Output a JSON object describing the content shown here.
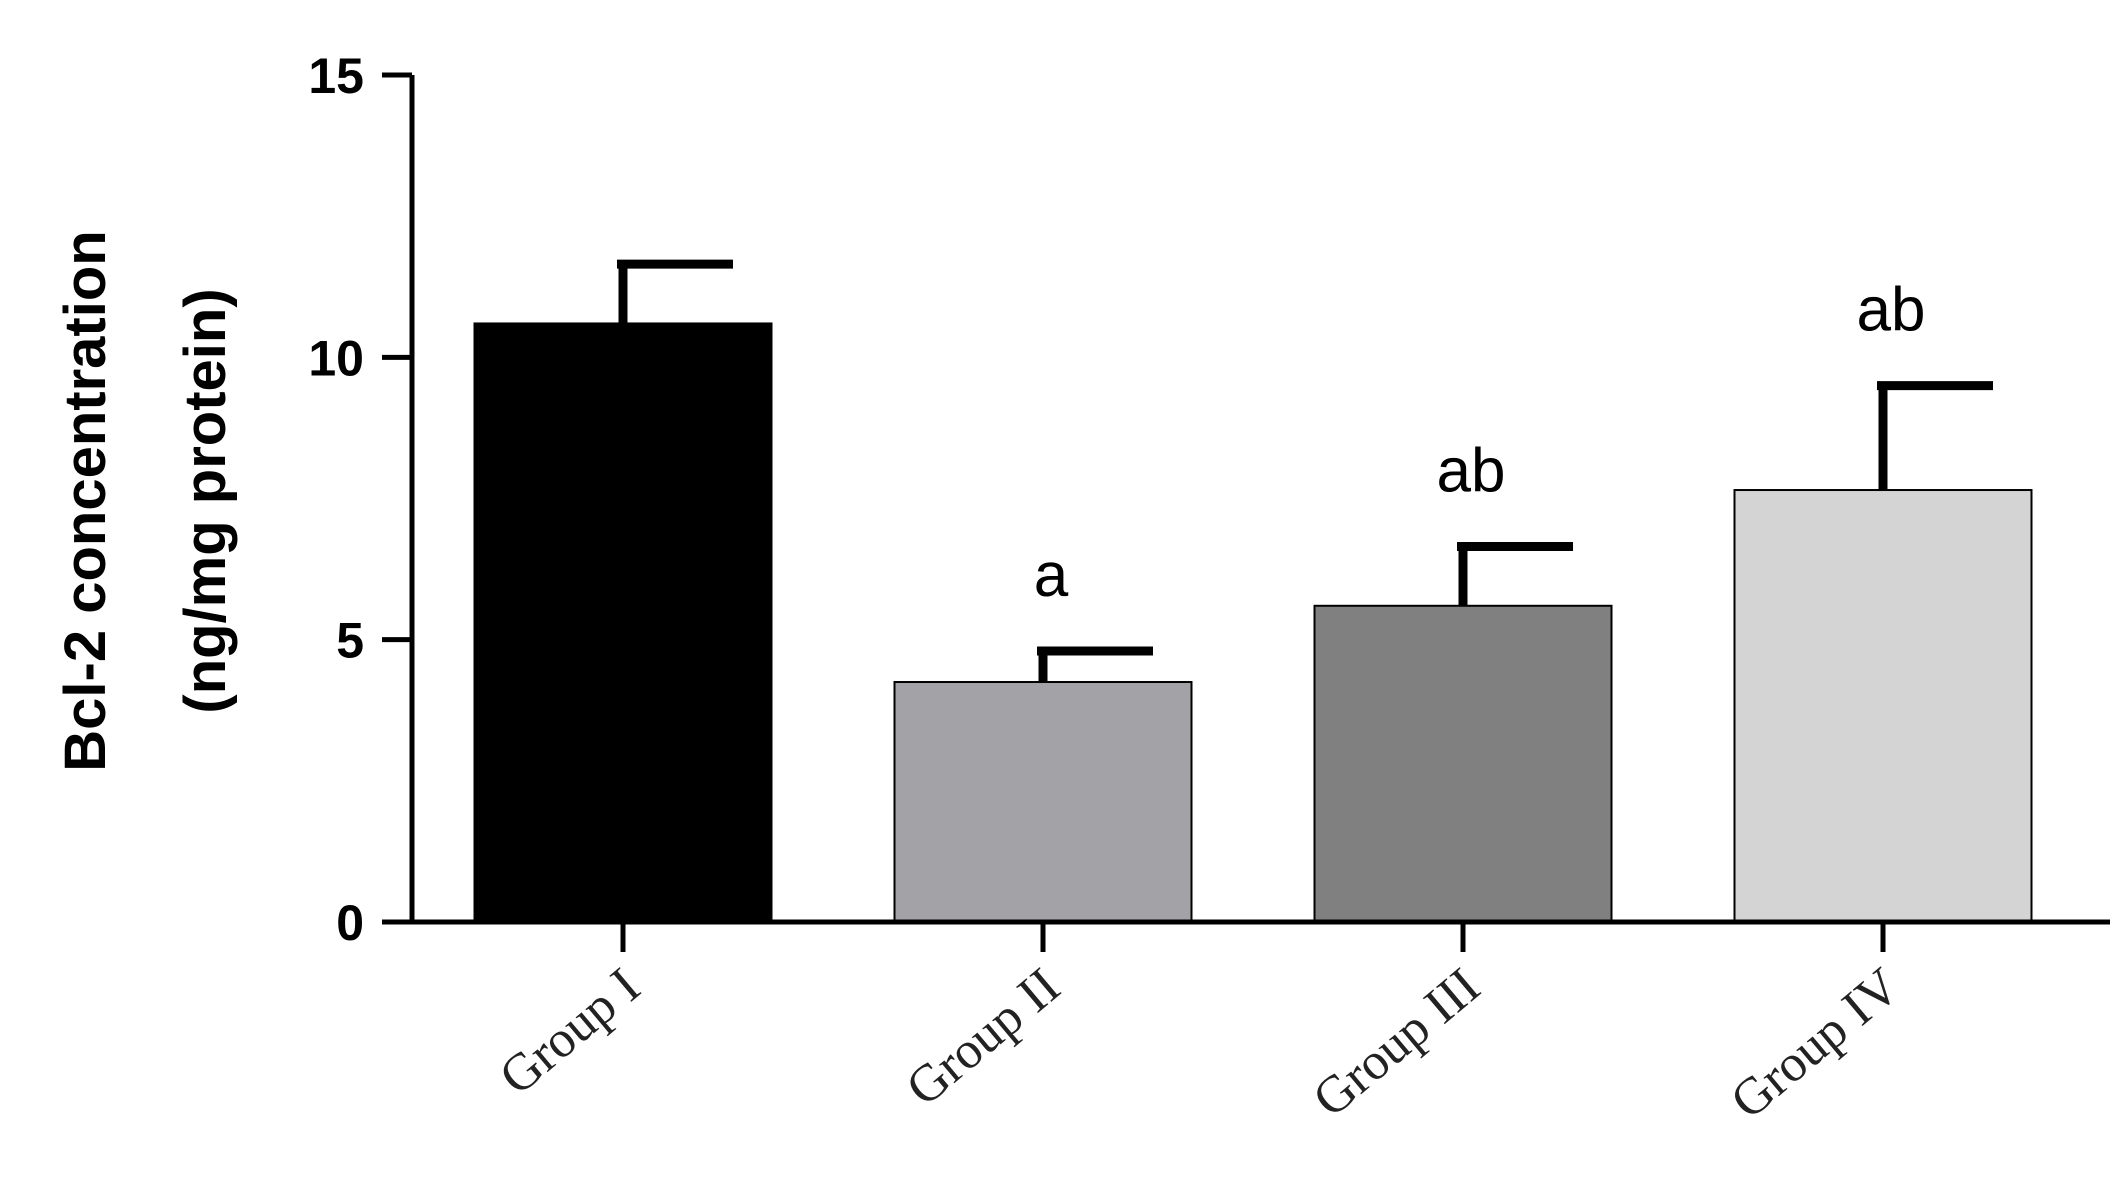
{
  "chart_data": {
    "type": "bar",
    "categories": [
      "Group I",
      "Group II",
      "Group III",
      "Group IV"
    ],
    "values": [
      10.6,
      4.25,
      5.6,
      7.65
    ],
    "errors": [
      1.05,
      0.55,
      1.05,
      1.85
    ],
    "significance": [
      "",
      "a",
      "ab",
      "ab"
    ],
    "bar_colors": [
      "#000000",
      "#a3a3a7",
      "#808080",
      "#d4d4d4"
    ],
    "title": "",
    "xlabel": "",
    "ylabel": [
      "Bcl-2 concentration",
      "(ng/mg protein)"
    ],
    "ylim": [
      0,
      15
    ],
    "yticks": [
      0,
      5,
      10,
      15
    ],
    "grid": false,
    "legend": "none"
  }
}
